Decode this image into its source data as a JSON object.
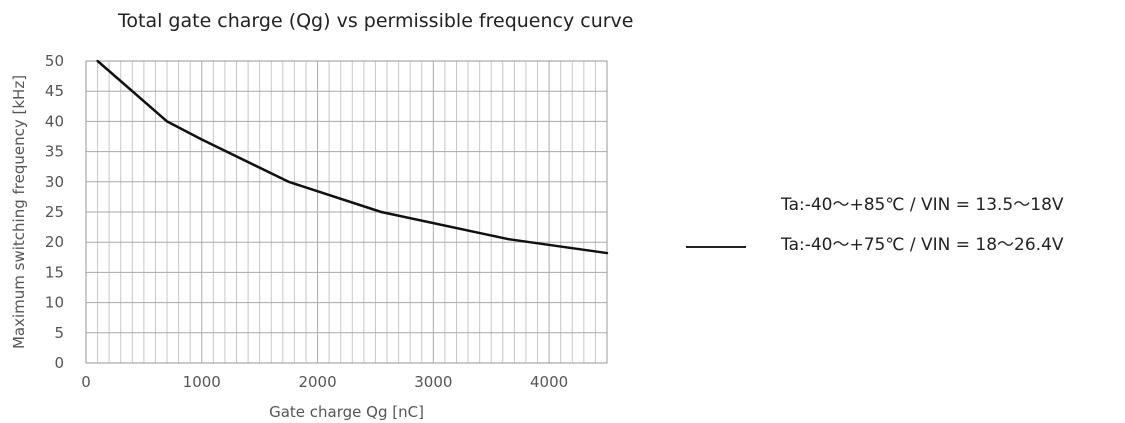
{
  "chart_data": {
    "type": "line",
    "title": "Total gate charge (Qg) vs permissible frequency curve",
    "xlabel": "Gate charge Qg [nC]",
    "ylabel": "Maximum switching frequency [kHz]",
    "xlim": [
      0,
      4500
    ],
    "ylim": [
      0,
      50
    ],
    "x_ticks": [
      0,
      1000,
      2000,
      3000,
      4000
    ],
    "y_ticks": [
      0,
      5,
      10,
      15,
      20,
      25,
      30,
      35,
      40,
      45,
      50
    ],
    "grid": true,
    "series": [
      {
        "x": [
          100,
          700,
          1000,
          1750,
          2550,
          3650,
          4500
        ],
        "y": [
          50,
          40,
          37,
          30,
          25,
          20.5,
          18.2
        ],
        "color": "#111111"
      }
    ],
    "legend": {
      "placement": "right",
      "entries": [
        "Ta:-40～+85℃ / VIN = 13.5～18V",
        "Ta:-40～+75℃ / VIN = 18～26.4V"
      ]
    }
  }
}
